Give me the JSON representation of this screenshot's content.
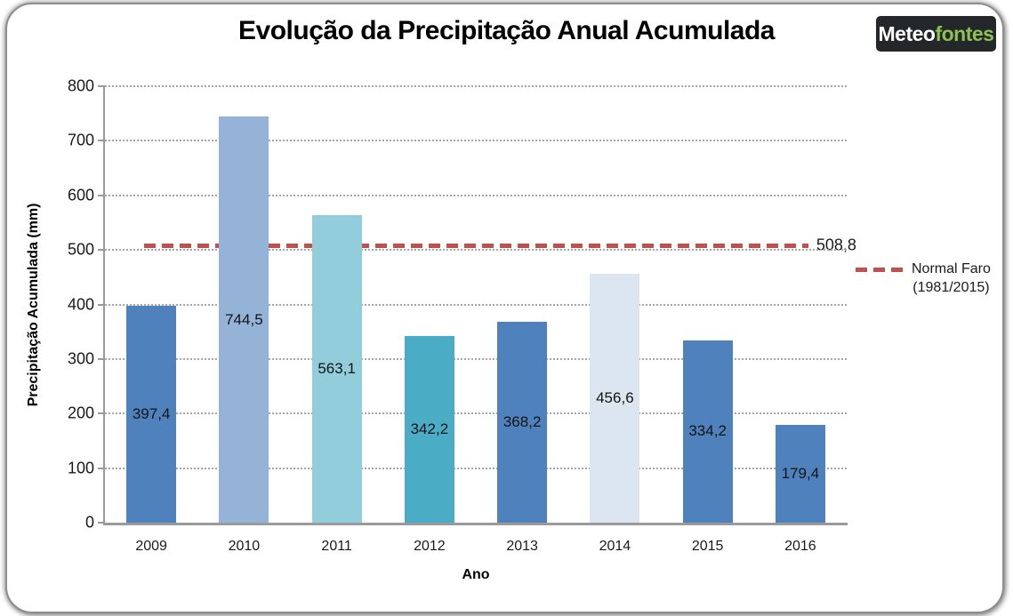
{
  "header": {
    "title": "Evolução da Precipitação Anual Acumulada",
    "logo": {
      "white_part": "Meteo",
      "green_part": "fontes"
    }
  },
  "chart_data": {
    "type": "bar",
    "title": "Evolução da Precipitação Anual Acumulada",
    "xlabel": "Ano",
    "ylabel": "Precipitação Acumulada (mm)",
    "ylim": [
      0,
      800
    ],
    "ytick_step": 100,
    "ytick_labels": [
      "0",
      "100",
      "200",
      "300",
      "400",
      "500",
      "600",
      "700",
      "800"
    ],
    "grid": "horizontal-dotted",
    "legend_position": "right",
    "categories": [
      "2009",
      "2010",
      "2011",
      "2012",
      "2013",
      "2014",
      "2015",
      "2016"
    ],
    "values": [
      397.4,
      744.5,
      563.1,
      342.2,
      368.2,
      456.6,
      334.2,
      179.4
    ],
    "value_labels": [
      "397,4",
      "744,5",
      "563,1",
      "342,2",
      "368,2",
      "456,6",
      "334,2",
      "179,4"
    ],
    "bar_colors": [
      "#4F81BD",
      "#95B3D7",
      "#92CDDC",
      "#4BACC6",
      "#4F81BD",
      "#DCE6F1",
      "#4F81BD",
      "#4F81BD"
    ],
    "value_label_position": "center",
    "reference_line": {
      "value": 508.8,
      "label": "508,8",
      "color": "#C0504D",
      "style": "dashed",
      "legend_line1": "Normal Faro",
      "legend_line2": "(1981/2015)"
    }
  },
  "colors": {
    "axis": "#9a9a9a",
    "grid": "#a6a6a6",
    "logo_bg": "#24272a",
    "logo_green": "#8dc153",
    "reference": "#C0504D"
  }
}
